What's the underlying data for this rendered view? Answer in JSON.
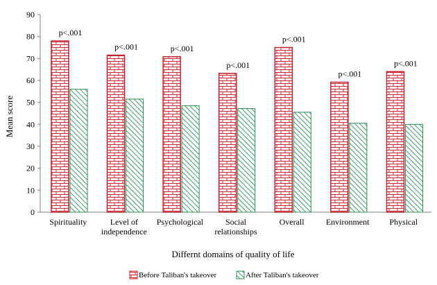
{
  "chart_data": {
    "type": "bar",
    "title": "",
    "xlabel": "Differnt domains of quality of life",
    "ylabel": "Mean score",
    "ylim": [
      0,
      90
    ],
    "yticks": [
      0,
      10,
      20,
      30,
      40,
      50,
      60,
      70,
      80,
      90
    ],
    "grid": false,
    "legend_position": "bottom",
    "categories": [
      [
        "Spirituality"
      ],
      [
        "Level of",
        "independence"
      ],
      [
        "Psychological"
      ],
      [
        "Social",
        "relationships"
      ],
      [
        "Overall"
      ],
      [
        "Environment"
      ],
      [
        "Physical"
      ]
    ],
    "series": [
      {
        "name": "Before Taliban's takeover",
        "pattern": "brick",
        "fill": "#ffffff",
        "stroke": "#c0202a",
        "values": [
          78,
          71.5,
          70.8,
          63.2,
          75,
          59.2,
          64
        ]
      },
      {
        "name": "After Taliban's takeover",
        "pattern": "diagonal-hatch",
        "fill": "#ffffff",
        "stroke": "#2e8b57",
        "values": [
          56,
          51.5,
          48.5,
          47.2,
          45.5,
          40.5,
          40
        ]
      }
    ],
    "annotations": [
      "p<.001",
      "p<.001",
      "p<.001",
      "p<.001",
      "p<.001",
      "p<.001",
      "p<.001"
    ]
  }
}
